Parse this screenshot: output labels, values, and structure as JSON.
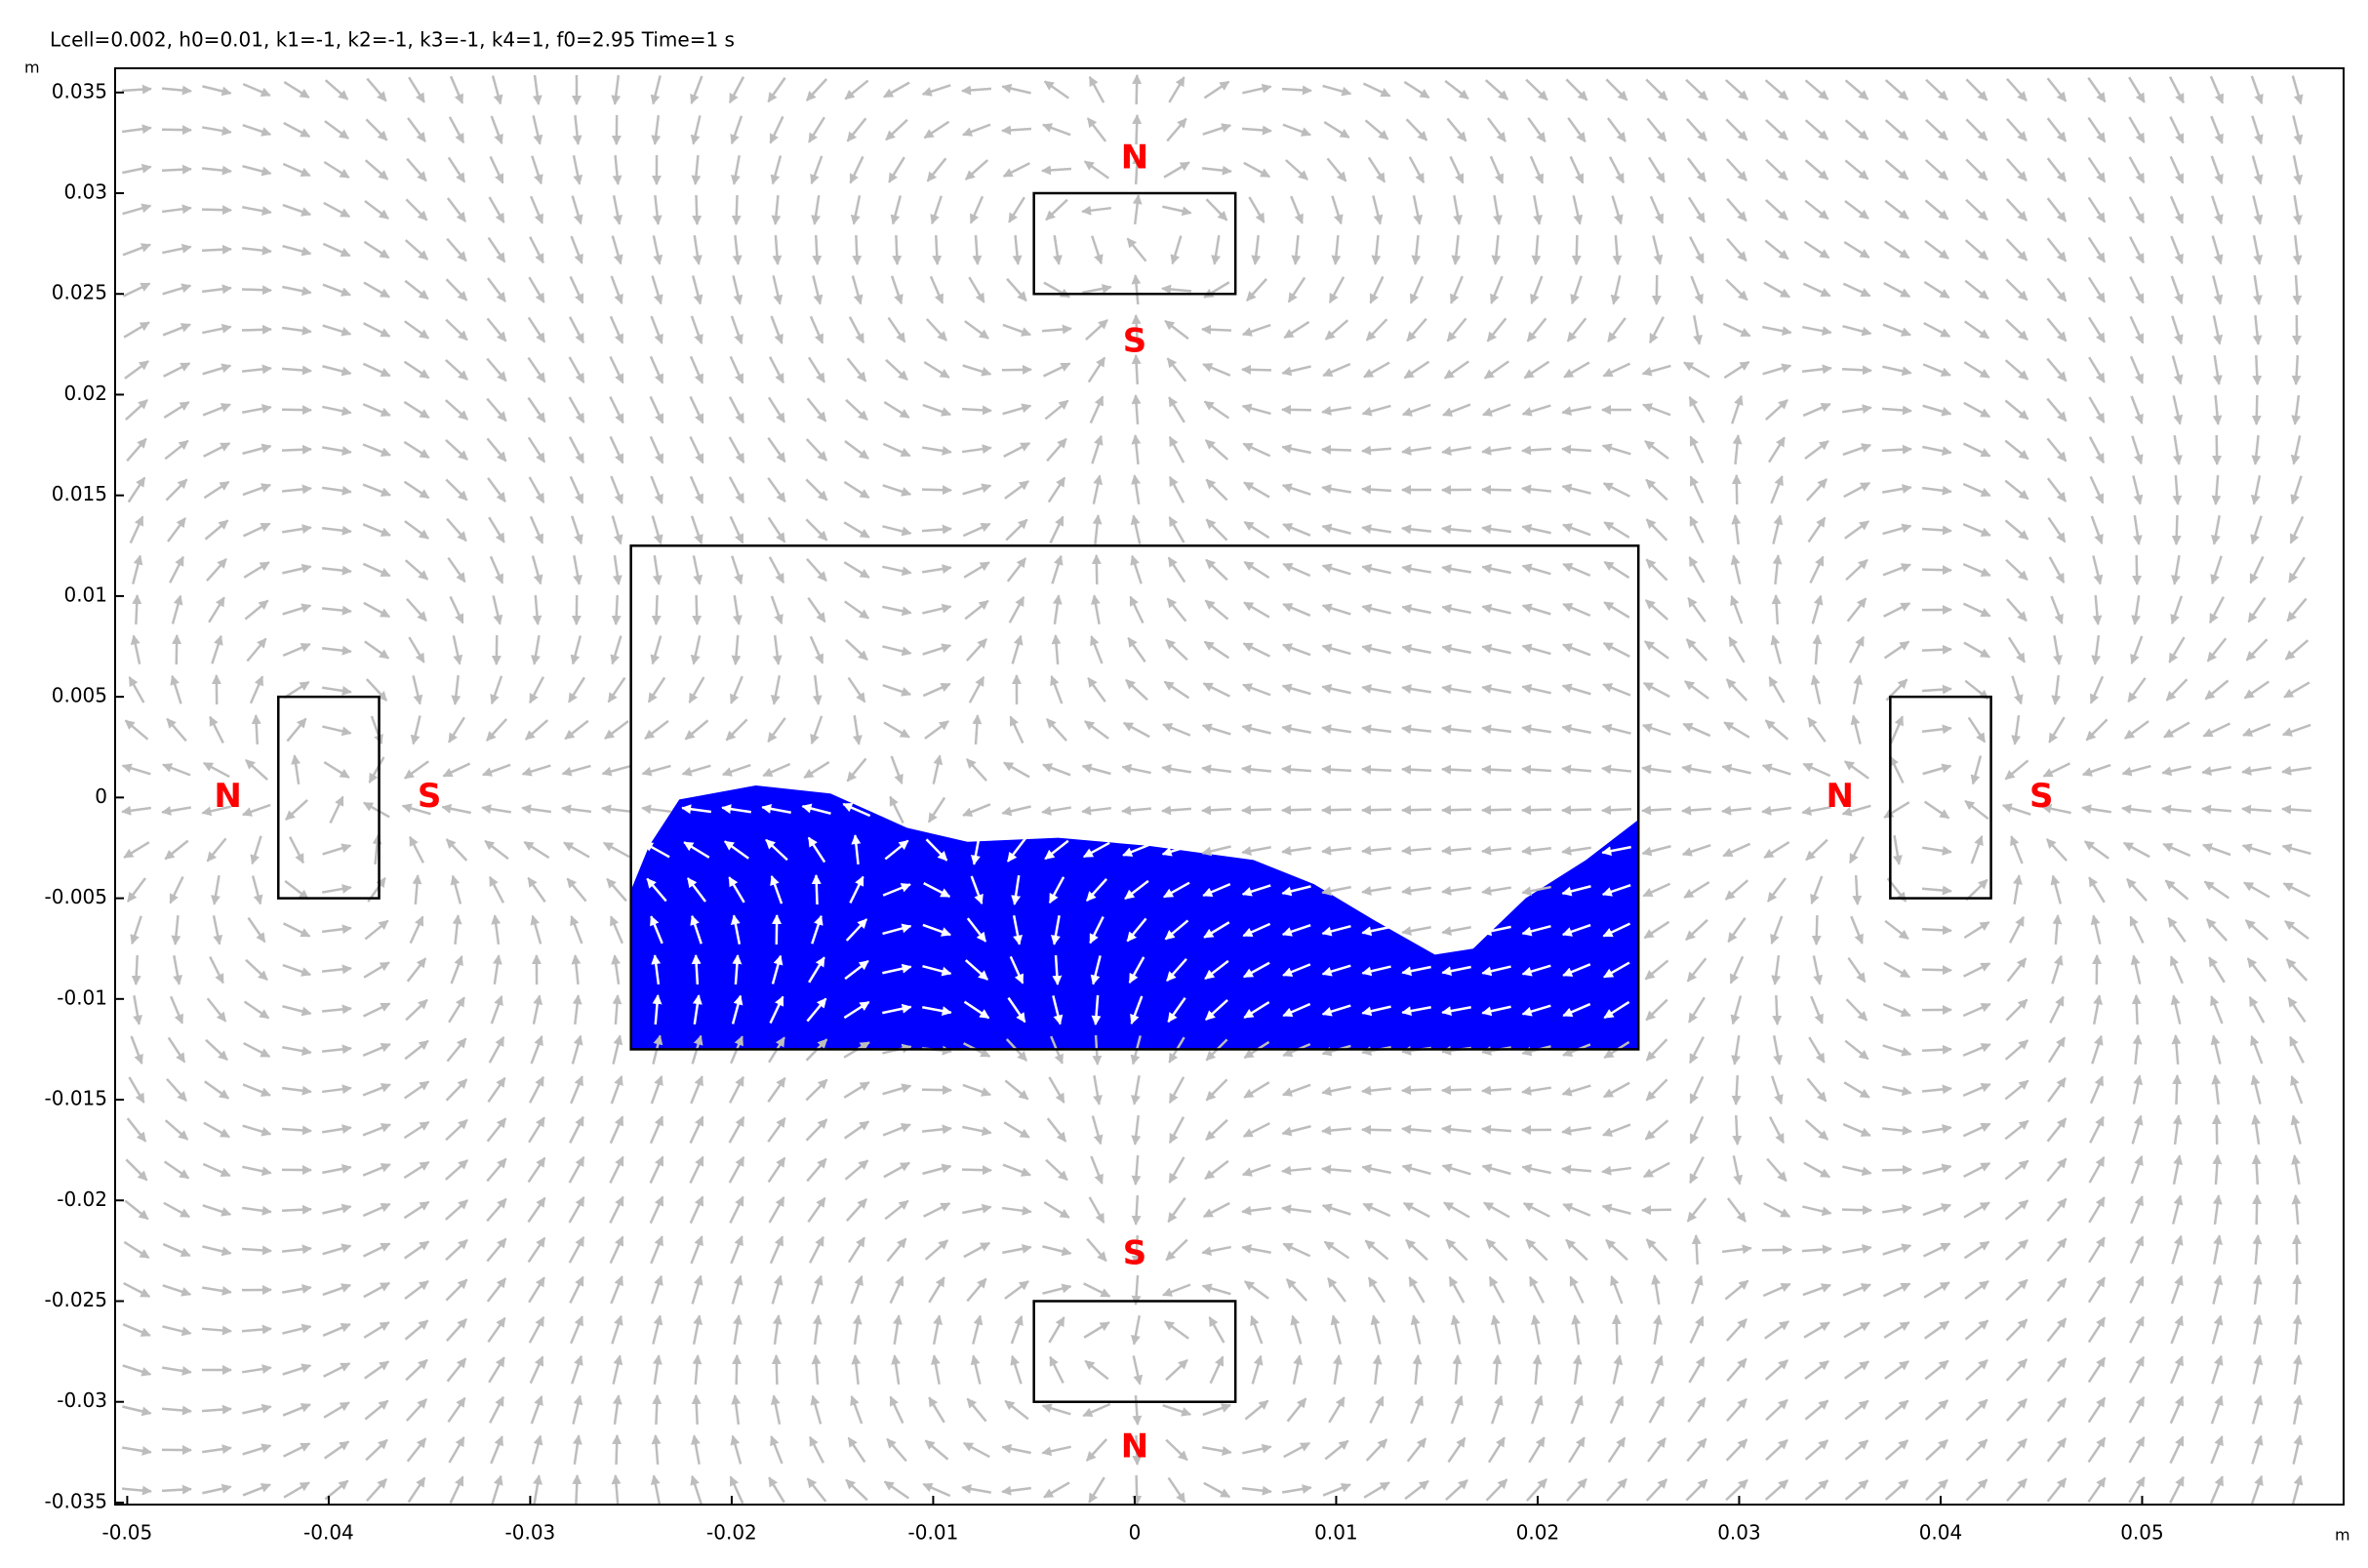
{
  "chart_data": {
    "type": "field",
    "title": "Lcell=0.002, h0=0.01, k1=-1, k2=-1, k3=-1, k4=1, f0=2.95 Time=1 s",
    "x_unit": "m",
    "y_unit": "m",
    "xlim": [
      -0.0506,
      0.06
    ],
    "ylim": [
      -0.0351,
      0.0362
    ],
    "xticks": [
      -0.05,
      -0.04,
      -0.03,
      -0.02,
      -0.01,
      0,
      0.01,
      0.02,
      0.03,
      0.04,
      0.05
    ],
    "yticks": [
      -0.035,
      -0.03,
      -0.025,
      -0.02,
      -0.015,
      -0.01,
      -0.005,
      0,
      0.005,
      0.01,
      0.015,
      0.02,
      0.025,
      0.03,
      0.035
    ],
    "shapes": [
      {
        "x": [
          -0.005,
          0.005
        ],
        "y": [
          0.025,
          0.03
        ]
      },
      {
        "x": [
          -0.005,
          0.005
        ],
        "y": [
          -0.03,
          -0.025
        ]
      },
      {
        "x": [
          -0.0425,
          -0.0375
        ],
        "y": [
          -0.005,
          0.005
        ]
      },
      {
        "x": [
          0.0375,
          0.0425
        ],
        "y": [
          -0.005,
          0.005
        ]
      },
      {
        "x": [
          -0.025,
          0.025
        ],
        "y": [
          -0.0125,
          0.0125
        ]
      }
    ],
    "fluid": {
      "color": "#0000ff",
      "x": [
        -0.025,
        -0.025,
        -0.0241,
        -0.0226,
        -0.0188,
        -0.0151,
        -0.0113,
        -0.0083,
        -0.0038,
        0.0007,
        0.0059,
        0.0089,
        0.0119,
        0.0149,
        0.0168,
        0.0194,
        0.0224,
        0.025,
        0.025
      ],
      "y": [
        -0.0125,
        -0.0046,
        -0.0024,
        -0.0001,
        0.0006,
        0.0002,
        -0.0015,
        -0.0022,
        -0.002,
        -0.0024,
        -0.0031,
        -0.0043,
        -0.0061,
        -0.0078,
        -0.0075,
        -0.005,
        -0.0031,
        -0.0011,
        -0.0125
      ]
    },
    "annotations": [
      {
        "text": "N",
        "x": 0,
        "y": 0.0317
      },
      {
        "text": "S",
        "x": 0,
        "y": 0.0226
      },
      {
        "text": "S",
        "x": 0,
        "y": -0.0227
      },
      {
        "text": "N",
        "x": 0,
        "y": -0.0323
      },
      {
        "text": "N",
        "x": -0.045,
        "y": 0
      },
      {
        "text": "S",
        "x": -0.035,
        "y": 0
      },
      {
        "text": "N",
        "x": 0.035,
        "y": 0
      },
      {
        "text": "S",
        "x": 0.045,
        "y": 0
      }
    ]
  }
}
